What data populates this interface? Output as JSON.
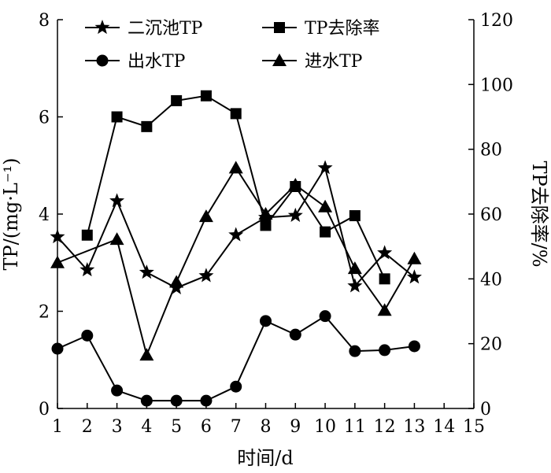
{
  "chart_data": {
    "type": "line",
    "xlabel": "时间/d",
    "ylabel": "TP/(mg·L⁻¹)",
    "y2label": "TP去除率/%",
    "xlim": [
      1,
      15
    ],
    "ylim": [
      0,
      8
    ],
    "y2lim": [
      0,
      120
    ],
    "x_ticks": [
      "1",
      "2",
      "3",
      "4",
      "5",
      "6",
      "7",
      "8",
      "9",
      "10",
      "11",
      "12",
      "13",
      "14",
      "15"
    ],
    "y_ticks": [
      "0",
      "2",
      "4",
      "6",
      "8"
    ],
    "y2_ticks": [
      "0",
      "20",
      "40",
      "60",
      "80",
      "100",
      "120"
    ],
    "grid": false,
    "legend_position": "top",
    "series": [
      {
        "name": "二沉池TP",
        "marker": "star",
        "axis": "left",
        "x": [
          1,
          2,
          3,
          4,
          5,
          6,
          7,
          8,
          9,
          10,
          11,
          12,
          13
        ],
        "y": [
          3.53,
          2.85,
          4.27,
          2.8,
          2.48,
          2.73,
          3.57,
          3.93,
          3.97,
          4.95,
          2.52,
          3.2,
          2.7
        ]
      },
      {
        "name": "TP去除率",
        "marker": "square",
        "axis": "right",
        "x": [
          2,
          3,
          4,
          5,
          6,
          7,
          8,
          9,
          10,
          11,
          12
        ],
        "y": [
          53.5,
          90,
          87,
          95,
          96.5,
          91,
          56.5,
          68.5,
          54.5,
          59.5,
          40
        ]
      },
      {
        "name": "出水TP",
        "marker": "circle",
        "axis": "left",
        "x": [
          1,
          2,
          3,
          4,
          5,
          6,
          7,
          8,
          9,
          10,
          11,
          12,
          13
        ],
        "y": [
          1.23,
          1.5,
          0.37,
          0.16,
          0.16,
          0.16,
          0.45,
          1.8,
          1.52,
          1.9,
          1.18,
          1.2,
          1.28
        ]
      },
      {
        "name": "进水TP",
        "marker": "triangle",
        "axis": "left",
        "x": [
          1,
          3,
          4,
          5,
          6,
          7,
          8,
          9,
          10,
          11,
          12,
          13
        ],
        "y": [
          3.0,
          3.48,
          1.1,
          2.6,
          3.95,
          4.95,
          4.0,
          4.6,
          4.15,
          2.88,
          2.02,
          3.08
        ]
      }
    ]
  }
}
